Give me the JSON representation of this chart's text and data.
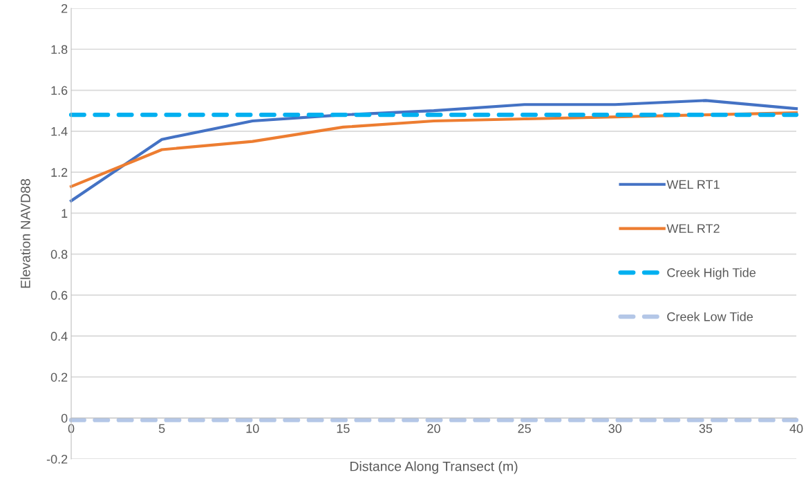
{
  "chart_data": {
    "type": "line",
    "xlabel": "Distance Along Transect (m)",
    "ylabel": "Elevation NAVD88",
    "x": [
      0,
      5,
      10,
      15,
      20,
      25,
      30,
      35,
      40
    ],
    "series": [
      {
        "name": "WEL RT1",
        "color": "#4472c4",
        "values": [
          1.06,
          1.36,
          1.45,
          1.48,
          1.5,
          1.53,
          1.53,
          1.55,
          1.51
        ]
      },
      {
        "name": "WEL RT2",
        "color": "#ed7d31",
        "values": [
          1.13,
          1.31,
          1.35,
          1.42,
          1.45,
          1.46,
          1.47,
          1.48,
          1.49
        ]
      }
    ],
    "ref_lines": [
      {
        "axis": "y",
        "value": 1.48,
        "label": "Creek High Tide",
        "color": "#00b0f0",
        "line_style": "dashed"
      },
      {
        "axis": "y",
        "value": -0.01,
        "label": "Creek Low Tide",
        "color": "#b4c7e7",
        "line_style": "dashed"
      }
    ],
    "xlim": [
      0,
      40
    ],
    "xticks": [
      0,
      5,
      10,
      15,
      20,
      25,
      30,
      35,
      40
    ],
    "ylim": [
      -0.2,
      2
    ],
    "yticks": [
      -0.2,
      0,
      0.2,
      0.4,
      0.6,
      0.8,
      1,
      1.2,
      1.4,
      1.6,
      1.8,
      2
    ],
    "grid": "y",
    "legend": "right",
    "line_style": "solid",
    "marker": "none"
  }
}
